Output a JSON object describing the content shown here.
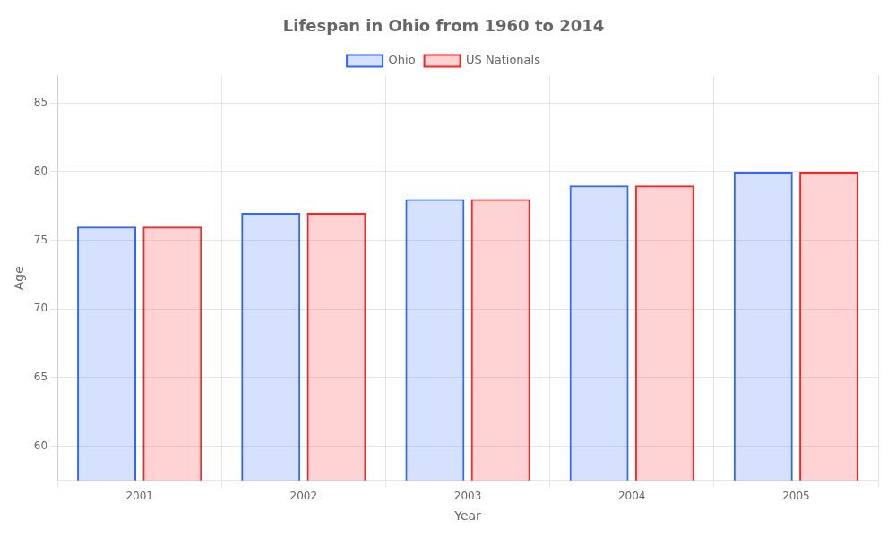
{
  "chart_data": {
    "type": "bar",
    "title": "Lifespan in Ohio from 1960 to 2014",
    "x_label": "Year",
    "y_label": "Age",
    "categories": [
      "2001",
      "2002",
      "2003",
      "2004",
      "2005"
    ],
    "series": [
      {
        "name": "Ohio",
        "color": "#3366ff",
        "values": [
          76,
          77,
          78,
          79,
          80
        ]
      },
      {
        "name": "US Nationals",
        "color": "#ff2222",
        "values": [
          76,
          77,
          78,
          79,
          80
        ]
      }
    ],
    "ylim": [
      57.5,
      87
    ],
    "yticks": [
      60,
      65,
      70,
      75,
      80,
      85
    ],
    "grid": true,
    "legend": "top"
  }
}
